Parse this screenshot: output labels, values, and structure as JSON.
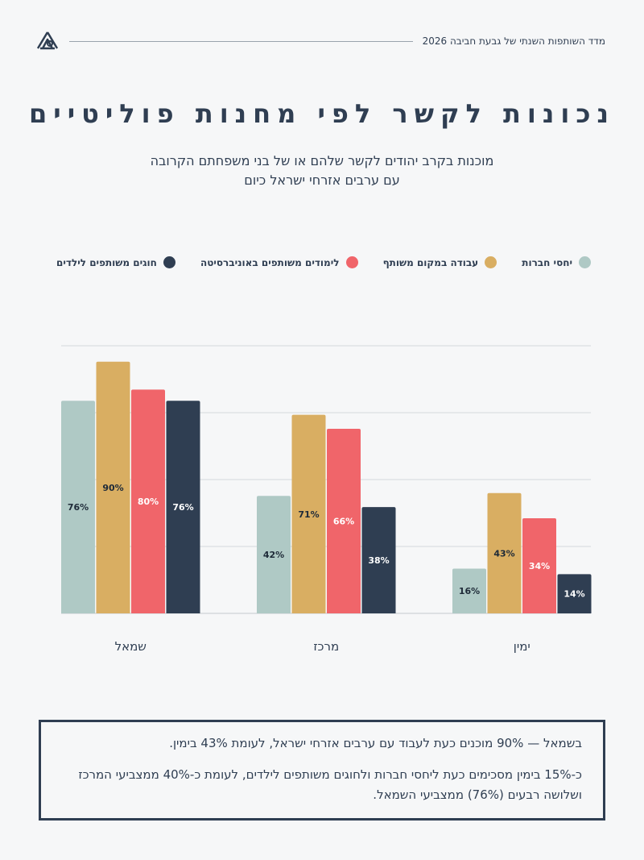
{
  "header": {
    "title": "מדד השותפות השנתי של גבעת חביבה 2026"
  },
  "title": "נכונות לקשר לפי מחנות פוליטיים",
  "subtitle": {
    "line1": "מוכנות בקרב יהודים לקשר שלהם או של בני משפחתם הקרובה",
    "line2": "עם ערבים אזרחי ישראל כיום"
  },
  "colors": {
    "teal": "#afc9c5",
    "gold": "#d9ae62",
    "coral": "#f0656a",
    "navy": "#2f3e52"
  },
  "chart_data": {
    "type": "bar",
    "categories": [
      "שמאל",
      "מרכז",
      "ימין"
    ],
    "series": [
      {
        "name": "יחסי חברות",
        "color": "#afc9c5",
        "values": [
          76,
          42,
          16
        ]
      },
      {
        "name": "עבודה במקום משותף",
        "color": "#d9ae62",
        "values": [
          90,
          71,
          43
        ]
      },
      {
        "name": "לימודים משותפים באוניברסיטה",
        "color": "#f0656a",
        "values": [
          80,
          66,
          34
        ]
      },
      {
        "name": "חוגים משותפים לילדים",
        "color": "#2f3e52",
        "values": [
          76,
          38,
          14
        ]
      }
    ],
    "ylim": [
      0,
      100
    ],
    "grid": true,
    "legend": "top"
  },
  "note": {
    "line1": "בשמאל — 90% מוכנים כעת לעבוד עם ערבים אזרחי ישראל, לעומת 43% בימין.",
    "line2": "כ-15% בימין מסכימים כעת ליחסי חברות ולחוגים משותפים לילדים, לעומת כ-40% ממצביעי המרכז ושלושה רבעים (76%) ממצביעי השמאל."
  }
}
